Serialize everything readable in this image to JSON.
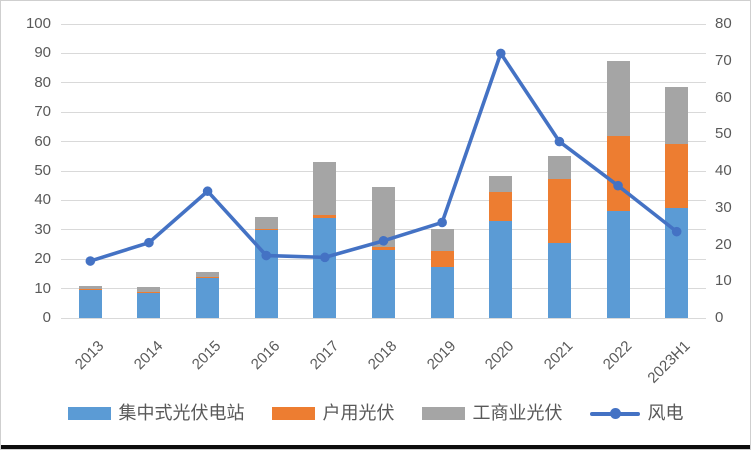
{
  "chart_data": {
    "type": "bar",
    "subtype": "stacked-bar-with-line",
    "categories": [
      "2013",
      "2014",
      "2015",
      "2016",
      "2017",
      "2018",
      "2019",
      "2020",
      "2021",
      "2022",
      "2023H1"
    ],
    "bar_series": [
      {
        "name": "集中式光伏电站",
        "color": "#5B9BD5",
        "values": [
          9.8,
          8.6,
          13.8,
          30.0,
          34.0,
          23.3,
          17.4,
          32.9,
          25.4,
          36.4,
          37.5
        ]
      },
      {
        "name": "户用光伏",
        "color": "#ED7D31",
        "values": [
          0.2,
          0.3,
          0.3,
          0.3,
          1.0,
          0.8,
          5.5,
          10.0,
          21.9,
          25.5,
          21.6
        ]
      },
      {
        "name": "工商业光伏",
        "color": "#A5A5A5",
        "values": [
          1.0,
          1.5,
          1.4,
          4.0,
          18.2,
          20.3,
          7.3,
          5.5,
          7.8,
          25.6,
          19.4
        ]
      }
    ],
    "line_series": [
      {
        "name": "风电",
        "color": "#4472C4",
        "axis": "right",
        "values": [
          15.5,
          20.5,
          34.5,
          17.0,
          16.5,
          21.0,
          26.0,
          72.0,
          48.0,
          36.0,
          23.5
        ]
      }
    ],
    "title": "",
    "xlabel": "",
    "ylabel": "",
    "left_axis": {
      "min": 0,
      "max": 100,
      "step": 10
    },
    "right_axis": {
      "min": 0,
      "max": 80,
      "step": 10
    },
    "grid": true,
    "legend_position": "bottom"
  },
  "legend": [
    {
      "label": "集中式光伏电站",
      "swatch": "rect",
      "color": "#5B9BD5"
    },
    {
      "label": "户用光伏",
      "swatch": "rect",
      "color": "#ED7D31"
    },
    {
      "label": "工商业光伏",
      "swatch": "rect",
      "color": "#A5A5A5"
    },
    {
      "label": "风电",
      "swatch": "line-marker",
      "color": "#4472C4"
    }
  ],
  "colors": {
    "gridline": "#d9d9d9",
    "axis_text": "#595959",
    "background": "#ffffff",
    "border": "#cfcfcf",
    "bottom_edge": "#0d0d0d"
  }
}
